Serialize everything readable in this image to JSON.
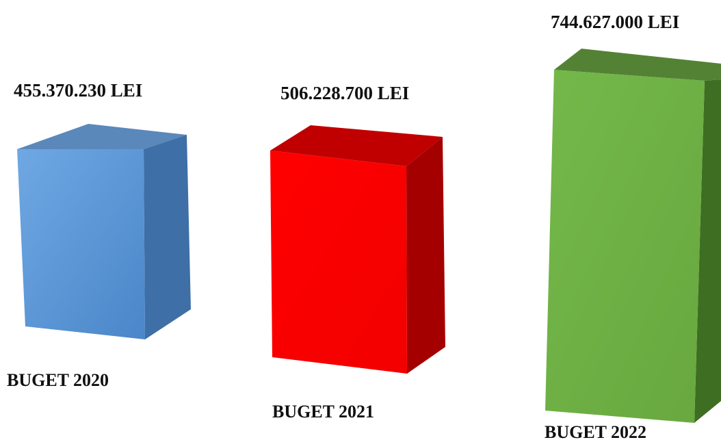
{
  "chart_data": {
    "type": "bar",
    "categories": [
      "BUGET 2020",
      "BUGET 2021",
      "BUGET 2022"
    ],
    "values": [
      455370230,
      506228700,
      744627000
    ],
    "value_labels": [
      "455.370.230 LEI",
      "506.228.700 LEI",
      "744.627.000 LEI"
    ],
    "unit": "LEI",
    "title": "",
    "xlabel": "",
    "ylabel": "",
    "style": "3d-box",
    "axes_visible": false,
    "grid": false,
    "legend": "none",
    "colors": [
      "#5b9bd5",
      "#ff0000",
      "#70ad47"
    ]
  }
}
